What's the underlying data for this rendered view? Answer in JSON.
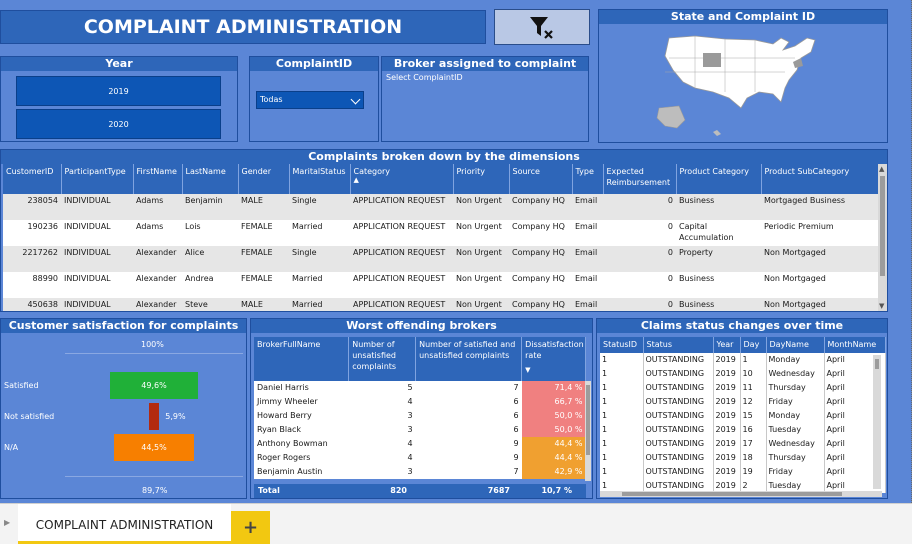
{
  "page": {
    "title": "COMPLAINT ADMINISTRATION"
  },
  "colors": {
    "canvas": "#5b86d6",
    "header": "#2e66b9",
    "accent_yellow": "#f2c811",
    "satisfied": "#20b038",
    "not_satisfied": "#b32a10",
    "na": "#f77f00",
    "rate_red": "#f08080",
    "rate_orange": "#f0a030"
  },
  "clear_filter_icon": "funnel-clear-icon",
  "map": {
    "title": "State and Complaint ID"
  },
  "year_slicer": {
    "title": "Year",
    "options": [
      "2019",
      "2020"
    ]
  },
  "complaint_slicer": {
    "title": "ComplaintID",
    "value": "Todas"
  },
  "broker_card": {
    "title": "Broker assigned to complaint",
    "text": "Select ComplaintID"
  },
  "main_table": {
    "title": "Complaints broken down by the dimensions",
    "columns": [
      "CustomerID",
      "ParticipantType",
      "FirstName",
      "LastName",
      "Gender",
      "MaritalStatus",
      "Category",
      "Priority",
      "Source",
      "Type",
      "Expected Reimbursement",
      "Product Category",
      "Product SubCategory"
    ],
    "rows": [
      [
        "238054",
        "INDIVIDUAL",
        "Adams",
        "Benjamin",
        "MALE",
        "Single",
        "APPLICATION REQUEST",
        "Non Urgent",
        "Company HQ",
        "Email",
        "0",
        "Business",
        "Mortgaged Business"
      ],
      [
        "190236",
        "INDIVIDUAL",
        "Adams",
        "Lois",
        "FEMALE",
        "Married",
        "APPLICATION REQUEST",
        "Non Urgent",
        "Company HQ",
        "Email",
        "0",
        "Capital Accumulation",
        "Periodic Premium"
      ],
      [
        "2217262",
        "INDIVIDUAL",
        "Alexander",
        "Alice",
        "FEMALE",
        "Single",
        "APPLICATION REQUEST",
        "Non Urgent",
        "Company HQ",
        "Email",
        "0",
        "Property",
        "Non Mortgaged"
      ],
      [
        "88990",
        "INDIVIDUAL",
        "Alexander",
        "Andrea",
        "FEMALE",
        "Married",
        "APPLICATION REQUEST",
        "Non Urgent",
        "Company HQ",
        "Email",
        "0",
        "Business",
        "Non Mortgaged"
      ],
      [
        "450638",
        "INDIVIDUAL",
        "Alexander",
        "Steve",
        "MALE",
        "Married",
        "APPLICATION REQUEST",
        "Non Urgent",
        "Company HQ",
        "Email",
        "0",
        "Business",
        "Non Mortgaged"
      ]
    ]
  },
  "satisfaction": {
    "title": "Customer satisfaction for complaints",
    "top_label": "100%",
    "bottom_label": "89,7%",
    "bars": [
      {
        "name": "Satisfied",
        "value": 49.6,
        "label": "49,6%"
      },
      {
        "name": "Not satisfied",
        "value": 5.9,
        "label": "5,9%"
      },
      {
        "name": "N/A",
        "value": 44.5,
        "label": "44,5%"
      }
    ]
  },
  "brokers": {
    "title": "Worst offending brokers",
    "columns": [
      "BrokerFullName",
      "Number of unsatisfied complaints",
      "Number of satisfied and unsatisfied complaints",
      "Dissatisfaction rate"
    ],
    "rows": [
      [
        "Daniel Harris",
        "5",
        "7",
        "71,4 %"
      ],
      [
        "Jimmy Wheeler",
        "4",
        "6",
        "66,7 %"
      ],
      [
        "Howard Berry",
        "3",
        "6",
        "50,0 %"
      ],
      [
        "Ryan Black",
        "3",
        "6",
        "50,0 %"
      ],
      [
        "Anthony Bowman",
        "4",
        "9",
        "44,4 %"
      ],
      [
        "Roger Rogers",
        "4",
        "9",
        "44,4 %"
      ],
      [
        "Benjamin Austin",
        "3",
        "7",
        "42,9 %"
      ]
    ],
    "total": [
      "Total",
      "820",
      "7687",
      "10,7 %"
    ]
  },
  "claims": {
    "title": "Claims status changes over time",
    "columns": [
      "StatusID",
      "Status",
      "Year",
      "Day",
      "DayName",
      "MonthName"
    ],
    "rows": [
      [
        "1",
        "OUTSTANDING",
        "2019",
        "1",
        "Monday",
        "April"
      ],
      [
        "1",
        "OUTSTANDING",
        "2019",
        "10",
        "Wednesday",
        "April"
      ],
      [
        "1",
        "OUTSTANDING",
        "2019",
        "11",
        "Thursday",
        "April"
      ],
      [
        "1",
        "OUTSTANDING",
        "2019",
        "12",
        "Friday",
        "April"
      ],
      [
        "1",
        "OUTSTANDING",
        "2019",
        "15",
        "Monday",
        "April"
      ],
      [
        "1",
        "OUTSTANDING",
        "2019",
        "16",
        "Tuesday",
        "April"
      ],
      [
        "1",
        "OUTSTANDING",
        "2019",
        "17",
        "Wednesday",
        "April"
      ],
      [
        "1",
        "OUTSTANDING",
        "2019",
        "18",
        "Thursday",
        "April"
      ],
      [
        "1",
        "OUTSTANDING",
        "2019",
        "19",
        "Friday",
        "April"
      ],
      [
        "1",
        "OUTSTANDING",
        "2019",
        "2",
        "Tuesday",
        "April"
      ]
    ]
  },
  "tabs": {
    "items": [
      "COMPLAINT ADMINISTRATION"
    ],
    "add_label": "+"
  }
}
